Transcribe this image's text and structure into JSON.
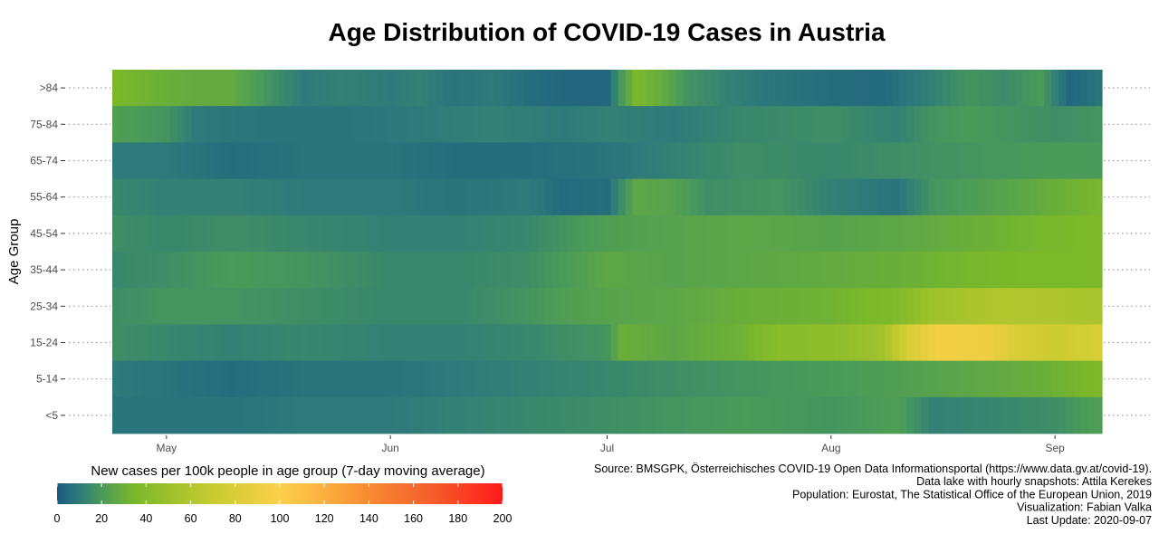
{
  "chart_data": {
    "type": "heatmap",
    "title": "Age Distribution of COVID-19 Cases in Austria",
    "ylabel": "Age Group",
    "xlabel": "",
    "x_ticks": [
      "May",
      "Jun",
      "Jul",
      "Aug",
      "Sep"
    ],
    "x_tick_dates": [
      "2020-05-01",
      "2020-06-01",
      "2020-07-01",
      "2020-08-01",
      "2020-09-01"
    ],
    "date_range": [
      "2020-04-24",
      "2020-09-07"
    ],
    "y_categories": [
      ">84",
      "75-84",
      "65-74",
      "55-64",
      "45-54",
      "35-44",
      "25-34",
      "15-24",
      "5-14",
      "<5"
    ],
    "legend": {
      "title": "New cases per 100k people in age group (7-day moving average)",
      "ticks": [
        0,
        20,
        40,
        60,
        80,
        100,
        120,
        140,
        160,
        180,
        200
      ],
      "range": [
        0,
        200
      ],
      "colors": [
        "#1a5a80",
        "#2e7a7a",
        "#4a9a5a",
        "#7ab82a",
        "#c8cc30",
        "#fcd04a",
        "#fcb040",
        "#f88a32",
        "#f45a2a",
        "#ff1a1a"
      ],
      "color_stops": [
        0,
        10,
        20,
        35,
        70,
        100,
        120,
        140,
        170,
        200
      ]
    },
    "series": [
      {
        "name": ">84",
        "points": [
          [
            "2020-04-24",
            35
          ],
          [
            "2020-05-01",
            30
          ],
          [
            "2020-05-05",
            28
          ],
          [
            "2020-05-10",
            28
          ],
          [
            "2020-05-15",
            18
          ],
          [
            "2020-05-20",
            10
          ],
          [
            "2020-05-25",
            12
          ],
          [
            "2020-06-01",
            10
          ],
          [
            "2020-06-05",
            12
          ],
          [
            "2020-06-10",
            8
          ],
          [
            "2020-06-15",
            10
          ],
          [
            "2020-06-20",
            6
          ],
          [
            "2020-06-25",
            4
          ],
          [
            "2020-07-01",
            4
          ],
          [
            "2020-07-05",
            35
          ],
          [
            "2020-07-08",
            30
          ],
          [
            "2020-07-12",
            18
          ],
          [
            "2020-07-18",
            12
          ],
          [
            "2020-07-25",
            8
          ],
          [
            "2020-08-01",
            6
          ],
          [
            "2020-08-08",
            5
          ],
          [
            "2020-08-15",
            12
          ],
          [
            "2020-08-20",
            18
          ],
          [
            "2020-08-25",
            15
          ],
          [
            "2020-08-30",
            20
          ],
          [
            "2020-09-03",
            4
          ],
          [
            "2020-09-07",
            8
          ]
        ]
      },
      {
        "name": "75-84",
        "points": [
          [
            "2020-04-24",
            22
          ],
          [
            "2020-05-01",
            18
          ],
          [
            "2020-05-05",
            10
          ],
          [
            "2020-05-15",
            8
          ],
          [
            "2020-05-25",
            8
          ],
          [
            "2020-06-05",
            10
          ],
          [
            "2020-06-15",
            12
          ],
          [
            "2020-06-25",
            10
          ],
          [
            "2020-07-01",
            12
          ],
          [
            "2020-07-10",
            10
          ],
          [
            "2020-07-20",
            14
          ],
          [
            "2020-08-01",
            16
          ],
          [
            "2020-08-10",
            12
          ],
          [
            "2020-08-15",
            18
          ],
          [
            "2020-08-20",
            20
          ],
          [
            "2020-08-25",
            18
          ],
          [
            "2020-09-01",
            16
          ],
          [
            "2020-09-07",
            18
          ]
        ]
      },
      {
        "name": "65-74",
        "points": [
          [
            "2020-04-24",
            10
          ],
          [
            "2020-05-01",
            10
          ],
          [
            "2020-05-10",
            6
          ],
          [
            "2020-05-20",
            8
          ],
          [
            "2020-06-01",
            8
          ],
          [
            "2020-06-10",
            6
          ],
          [
            "2020-06-20",
            6
          ],
          [
            "2020-07-01",
            8
          ],
          [
            "2020-07-10",
            12
          ],
          [
            "2020-07-20",
            16
          ],
          [
            "2020-08-01",
            14
          ],
          [
            "2020-08-10",
            16
          ],
          [
            "2020-08-20",
            18
          ],
          [
            "2020-08-30",
            20
          ],
          [
            "2020-09-07",
            20
          ]
        ]
      },
      {
        "name": "55-64",
        "points": [
          [
            "2020-04-24",
            14
          ],
          [
            "2020-05-01",
            12
          ],
          [
            "2020-05-10",
            12
          ],
          [
            "2020-05-20",
            10
          ],
          [
            "2020-06-01",
            10
          ],
          [
            "2020-06-10",
            8
          ],
          [
            "2020-06-20",
            10
          ],
          [
            "2020-06-25",
            5
          ],
          [
            "2020-07-01",
            6
          ],
          [
            "2020-07-05",
            26
          ],
          [
            "2020-07-10",
            24
          ],
          [
            "2020-07-15",
            16
          ],
          [
            "2020-07-25",
            18
          ],
          [
            "2020-08-01",
            12
          ],
          [
            "2020-08-10",
            8
          ],
          [
            "2020-08-15",
            18
          ],
          [
            "2020-08-25",
            24
          ],
          [
            "2020-09-01",
            30
          ],
          [
            "2020-09-07",
            34
          ]
        ]
      },
      {
        "name": "45-54",
        "points": [
          [
            "2020-04-24",
            16
          ],
          [
            "2020-05-01",
            14
          ],
          [
            "2020-05-10",
            16
          ],
          [
            "2020-05-20",
            14
          ],
          [
            "2020-06-01",
            12
          ],
          [
            "2020-06-10",
            12
          ],
          [
            "2020-06-20",
            14
          ],
          [
            "2020-06-25",
            18
          ],
          [
            "2020-07-01",
            22
          ],
          [
            "2020-07-10",
            24
          ],
          [
            "2020-07-20",
            26
          ],
          [
            "2020-08-01",
            24
          ],
          [
            "2020-08-10",
            26
          ],
          [
            "2020-08-20",
            30
          ],
          [
            "2020-08-30",
            34
          ],
          [
            "2020-09-07",
            36
          ]
        ]
      },
      {
        "name": "35-44",
        "points": [
          [
            "2020-04-24",
            14
          ],
          [
            "2020-05-01",
            16
          ],
          [
            "2020-05-10",
            20
          ],
          [
            "2020-05-20",
            18
          ],
          [
            "2020-06-01",
            14
          ],
          [
            "2020-06-10",
            14
          ],
          [
            "2020-06-20",
            16
          ],
          [
            "2020-06-25",
            20
          ],
          [
            "2020-07-01",
            26
          ],
          [
            "2020-07-10",
            24
          ],
          [
            "2020-07-20",
            26
          ],
          [
            "2020-08-01",
            28
          ],
          [
            "2020-08-10",
            30
          ],
          [
            "2020-08-20",
            34
          ],
          [
            "2020-08-30",
            36
          ],
          [
            "2020-09-07",
            36
          ]
        ]
      },
      {
        "name": "25-34",
        "points": [
          [
            "2020-04-24",
            16
          ],
          [
            "2020-05-01",
            18
          ],
          [
            "2020-05-10",
            18
          ],
          [
            "2020-05-20",
            16
          ],
          [
            "2020-06-01",
            14
          ],
          [
            "2020-06-10",
            14
          ],
          [
            "2020-06-20",
            18
          ],
          [
            "2020-06-25",
            22
          ],
          [
            "2020-07-01",
            24
          ],
          [
            "2020-07-10",
            26
          ],
          [
            "2020-07-20",
            30
          ],
          [
            "2020-08-01",
            32
          ],
          [
            "2020-08-10",
            38
          ],
          [
            "2020-08-15",
            52
          ],
          [
            "2020-08-25",
            60
          ],
          [
            "2020-09-01",
            58
          ],
          [
            "2020-09-07",
            56
          ]
        ]
      },
      {
        "name": "15-24",
        "points": [
          [
            "2020-04-24",
            16
          ],
          [
            "2020-05-01",
            14
          ],
          [
            "2020-05-10",
            12
          ],
          [
            "2020-05-20",
            14
          ],
          [
            "2020-06-01",
            12
          ],
          [
            "2020-06-10",
            12
          ],
          [
            "2020-06-20",
            14
          ],
          [
            "2020-06-25",
            16
          ],
          [
            "2020-07-01",
            18
          ],
          [
            "2020-07-03",
            30
          ],
          [
            "2020-07-10",
            26
          ],
          [
            "2020-07-20",
            32
          ],
          [
            "2020-07-25",
            42
          ],
          [
            "2020-08-01",
            44
          ],
          [
            "2020-08-08",
            52
          ],
          [
            "2020-08-12",
            80
          ],
          [
            "2020-08-16",
            95
          ],
          [
            "2020-08-22",
            92
          ],
          [
            "2020-08-27",
            78
          ],
          [
            "2020-09-01",
            72
          ],
          [
            "2020-09-07",
            78
          ]
        ]
      },
      {
        "name": "5-14",
        "points": [
          [
            "2020-04-24",
            10
          ],
          [
            "2020-05-01",
            8
          ],
          [
            "2020-05-10",
            6
          ],
          [
            "2020-05-20",
            8
          ],
          [
            "2020-06-01",
            8
          ],
          [
            "2020-06-10",
            10
          ],
          [
            "2020-06-20",
            12
          ],
          [
            "2020-07-01",
            14
          ],
          [
            "2020-07-10",
            16
          ],
          [
            "2020-07-20",
            18
          ],
          [
            "2020-08-01",
            20
          ],
          [
            "2020-08-10",
            22
          ],
          [
            "2020-08-20",
            26
          ],
          [
            "2020-08-30",
            30
          ],
          [
            "2020-09-05",
            34
          ],
          [
            "2020-09-07",
            36
          ]
        ]
      },
      {
        "name": "<5",
        "points": [
          [
            "2020-04-24",
            8
          ],
          [
            "2020-05-01",
            8
          ],
          [
            "2020-05-10",
            8
          ],
          [
            "2020-05-20",
            10
          ],
          [
            "2020-06-01",
            10
          ],
          [
            "2020-06-10",
            12
          ],
          [
            "2020-06-20",
            14
          ],
          [
            "2020-07-01",
            16
          ],
          [
            "2020-07-10",
            18
          ],
          [
            "2020-07-20",
            20
          ],
          [
            "2020-08-01",
            18
          ],
          [
            "2020-08-10",
            22
          ],
          [
            "2020-08-15",
            12
          ],
          [
            "2020-08-25",
            14
          ],
          [
            "2020-09-01",
            16
          ],
          [
            "2020-09-07",
            22
          ]
        ]
      }
    ],
    "caption_lines": [
      "Source: BMSGPK, Österreichisches COVID-19 Open Data Informationsportal (https://www.data.gv.at/covid-19).",
      "Data lake with hourly snapshots: Attila Kerekes",
      "Population: Eurostat, The Statistical Office of the European Union, 2019",
      "Visualization: Fabian Valka",
      "Last Update: 2020-09-07"
    ]
  }
}
